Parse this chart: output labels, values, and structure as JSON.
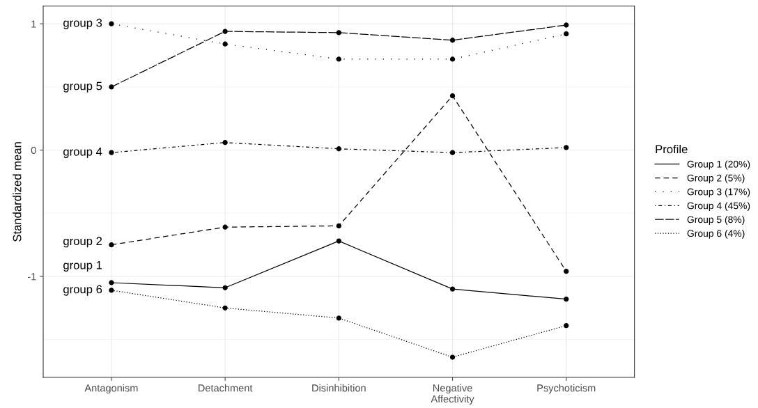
{
  "chart_data": {
    "type": "line",
    "ylabel": "Standardized mean",
    "legend_title": "Profile",
    "legend": "right",
    "grid": true,
    "marker": "circle",
    "categories": [
      "Antagonism",
      "Detachment",
      "Disinhibition",
      "Negative\nAffectivity",
      "Psychoticism"
    ],
    "ylim": [
      -1.8,
      1.14
    ],
    "yticks": [
      -1,
      0,
      1
    ],
    "series": [
      {
        "name": "Group 1 (20%)",
        "color": "#000000",
        "line_style": "solid",
        "values": [
          -1.05,
          -1.09,
          -0.72,
          -1.1,
          -1.18
        ]
      },
      {
        "name": "Group 2 (5%)",
        "color": "#000000",
        "line_style": "dashed",
        "values": [
          -0.75,
          -0.61,
          -0.6,
          0.43,
          -0.96
        ]
      },
      {
        "name": "Group 3 (17%)",
        "color": "#000000",
        "line_style": "sparsedotted",
        "values": [
          1.0,
          0.84,
          0.72,
          0.72,
          0.92
        ]
      },
      {
        "name": "Group 4 (45%)",
        "color": "#000000",
        "line_style": "dashdot",
        "values": [
          -0.02,
          0.06,
          0.01,
          -0.02,
          0.02
        ]
      },
      {
        "name": "Group 5 (8%)",
        "color": "#000000",
        "line_style": "longdash",
        "values": [
          0.5,
          0.94,
          0.93,
          0.87,
          0.99
        ]
      },
      {
        "name": "Group 6 (4%)",
        "color": "#000000",
        "line_style": "dotted",
        "values": [
          -1.11,
          -1.25,
          -1.33,
          -1.64,
          -1.39
        ]
      }
    ],
    "annotations": [
      {
        "text": "group 3",
        "x": "Antagonism",
        "y": 1.0
      },
      {
        "text": "group 5",
        "x": "Antagonism",
        "y": 0.5
      },
      {
        "text": "group 4",
        "x": "Antagonism",
        "y": -0.02
      },
      {
        "text": "group 2",
        "x": "Antagonism",
        "y": -0.75
      },
      {
        "text": "group 1",
        "x": "Antagonism",
        "y": -1.05
      },
      {
        "text": "group 6",
        "x": "Antagonism",
        "y": -1.11
      }
    ]
  }
}
